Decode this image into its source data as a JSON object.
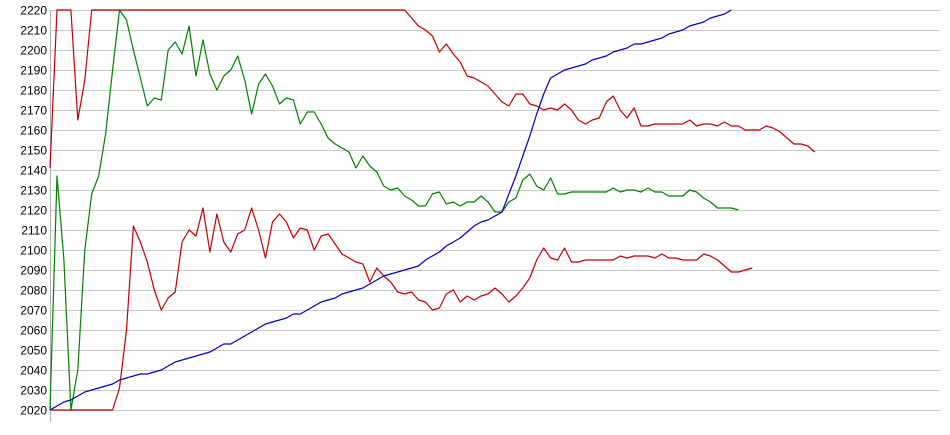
{
  "chart_data": {
    "type": "line",
    "title": "",
    "xlabel": "",
    "ylabel": "",
    "ylim": [
      2020,
      2220
    ],
    "y_ticks": [
      2020,
      2030,
      2040,
      2050,
      2060,
      2070,
      2080,
      2090,
      2100,
      2110,
      2120,
      2130,
      2140,
      2150,
      2160,
      2170,
      2180,
      2190,
      2200,
      2210,
      2220
    ],
    "y_tick_labels": [
      "2020",
      "2030",
      "2040",
      "2050",
      "2060",
      "2070",
      "2080",
      "2090",
      "2100",
      "2110",
      "2120",
      "2130",
      "2140",
      "2150",
      "2160",
      "2170",
      "2180",
      "2190",
      "2200",
      "2210",
      "2220"
    ],
    "xlim": [
      0,
      128
    ],
    "grid": true,
    "legend": "none",
    "series": [
      {
        "color": "#c00000",
        "values": [
          2141,
          2220,
          2220,
          2220,
          2165,
          2185,
          2220,
          2220,
          2220,
          2220,
          2220,
          2220,
          2220,
          2220,
          2220,
          2220,
          2220,
          2220,
          2220,
          2220,
          2220,
          2220,
          2220,
          2220,
          2220,
          2220,
          2220,
          2220,
          2220,
          2220,
          2220,
          2220,
          2220,
          2220,
          2220,
          2220,
          2220,
          2220,
          2220,
          2220,
          2220,
          2220,
          2220,
          2220,
          2220,
          2220,
          2220,
          2220,
          2220,
          2220,
          2220,
          2220,
          2216,
          2212,
          2210,
          2207,
          2199,
          2203,
          2198,
          2194,
          2187,
          2186,
          2184,
          2182,
          2178,
          2174,
          2172,
          2178,
          2178,
          2173,
          2172,
          2170,
          2171,
          2170,
          2173,
          2170,
          2165,
          2163,
          2165,
          2166,
          2174,
          2177,
          2170,
          2166,
          2171,
          2162,
          2162,
          2163,
          2163,
          2163,
          2163,
          2163,
          2165,
          2162,
          2163,
          2163,
          2162,
          2164,
          2162,
          2162,
          2160,
          2160,
          2160,
          2162,
          2161,
          2159,
          2156,
          2153,
          2153,
          2152,
          2149
        ]
      },
      {
        "color": "#008000",
        "values": [
          2020,
          2137,
          2095,
          2020,
          2040,
          2100,
          2128,
          2137,
          2158,
          2190,
          2220,
          2215,
          2200,
          2186,
          2172,
          2176,
          2175,
          2200,
          2204,
          2198,
          2212,
          2187,
          2205,
          2188,
          2180,
          2187,
          2190,
          2197,
          2185,
          2168,
          2183,
          2188,
          2182,
          2173,
          2176,
          2175,
          2163,
          2169,
          2169,
          2163,
          2156,
          2153,
          2151,
          2149,
          2141,
          2147,
          2142,
          2139,
          2132,
          2130,
          2131,
          2127,
          2125,
          2122,
          2122,
          2128,
          2129,
          2123,
          2124,
          2122,
          2124,
          2124,
          2127,
          2124,
          2119,
          2119,
          2124,
          2126,
          2135,
          2138,
          2132,
          2130,
          2136,
          2128,
          2128,
          2129,
          2129,
          2129,
          2129,
          2129,
          2129,
          2131,
          2129,
          2130,
          2130,
          2129,
          2131,
          2129,
          2129,
          2127,
          2127,
          2127,
          2130,
          2129,
          2126,
          2124,
          2121,
          2121,
          2121,
          2120
        ]
      },
      {
        "color": "#c00000",
        "values": [
          2020,
          2020,
          2020,
          2020,
          2020,
          2020,
          2020,
          2020,
          2020,
          2020,
          2031,
          2060,
          2112,
          2104,
          2094,
          2080,
          2070,
          2076,
          2079,
          2104,
          2110,
          2107,
          2121,
          2099,
          2118,
          2104,
          2099,
          2108,
          2110,
          2121,
          2110,
          2096,
          2114,
          2118,
          2114,
          2106,
          2111,
          2110,
          2100,
          2107,
          2108,
          2103,
          2098,
          2096,
          2094,
          2093,
          2084,
          2091,
          2087,
          2084,
          2079,
          2078,
          2079,
          2075,
          2074,
          2070,
          2071,
          2078,
          2080,
          2074,
          2077,
          2075,
          2077,
          2078,
          2081,
          2078,
          2074,
          2077,
          2081,
          2086,
          2095,
          2101,
          2096,
          2095,
          2101,
          2094,
          2094,
          2095,
          2095,
          2095,
          2095,
          2095,
          2097,
          2096,
          2097,
          2097,
          2097,
          2096,
          2098,
          2096,
          2096,
          2095,
          2095,
          2095,
          2098,
          2097,
          2095,
          2092,
          2089,
          2089,
          2090,
          2091
        ]
      },
      {
        "color": "#0000c0",
        "values": [
          2020,
          2022,
          2024,
          2025,
          2027,
          2029,
          2030,
          2031,
          2032,
          2033,
          2035,
          2036,
          2037,
          2038,
          2038,
          2039,
          2040,
          2042,
          2044,
          2045,
          2046,
          2047,
          2048,
          2049,
          2051,
          2053,
          2053,
          2055,
          2057,
          2059,
          2061,
          2063,
          2064,
          2065,
          2066,
          2068,
          2068,
          2070,
          2072,
          2074,
          2075,
          2076,
          2078,
          2079,
          2080,
          2081,
          2083,
          2085,
          2087,
          2088,
          2089,
          2090,
          2091,
          2092,
          2095,
          2097,
          2099,
          2102,
          2104,
          2106,
          2109,
          2112,
          2114,
          2115,
          2117,
          2119,
          2128,
          2137,
          2147,
          2157,
          2168,
          2178,
          2186,
          2188,
          2190,
          2191,
          2192,
          2193,
          2195,
          2196,
          2197,
          2199,
          2200,
          2201,
          2203,
          2203,
          2204,
          2205,
          2206,
          2208,
          2209,
          2210,
          2212,
          2213,
          2214,
          2216,
          2217,
          2218,
          2220
        ]
      }
    ]
  }
}
